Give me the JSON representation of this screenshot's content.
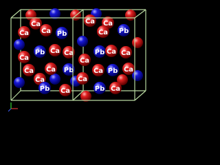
{
  "atom_labels": [
    "Ca",
    "Ca",
    "Ca",
    "Pb",
    "Ca",
    "Ca",
    "Pb",
    "Ca",
    "Ca",
    "Pb",
    "Ca",
    "Ca",
    "Ca",
    "Pb",
    "Ca",
    "Ca",
    "Ca",
    "Ca",
    "Pb",
    "Ca",
    "Pb",
    "Ca",
    "Ca",
    "Pb",
    "Ca",
    "Ca",
    "Pb",
    "Ca"
  ]
}
